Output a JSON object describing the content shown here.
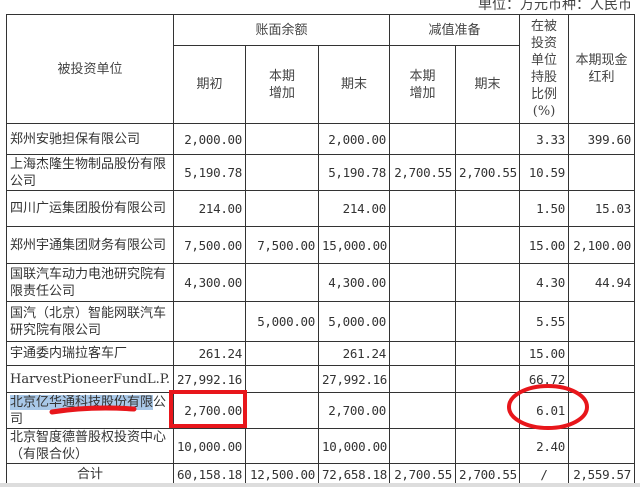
{
  "unit_note": "单位：万元币种：人民币",
  "headers": {
    "investee": "被投资单位",
    "book_balance": "账面余额",
    "impairment": "减值准备",
    "opening": "期初",
    "increase": "本期增加",
    "closing": "期末",
    "imp_increase": "本期增加",
    "imp_closing": "期末",
    "share_ratio": "在被投资单位持股比例(%)",
    "dividend": "本期现金红利"
  },
  "rows": [
    {
      "name": "郑州安驰担保有限公司",
      "opening": "2,000.00",
      "increase": "",
      "closing": "2,000.00",
      "imp_increase": "",
      "imp_closing": "",
      "ratio": "3.33",
      "dividend": "399.60"
    },
    {
      "name": "上海杰隆生物制品股份有限公司",
      "opening": "5,190.78",
      "increase": "",
      "closing": "5,190.78",
      "imp_increase": "2,700.55",
      "imp_closing": "2,700.55",
      "ratio": "10.59",
      "dividend": ""
    },
    {
      "name": "四川广运集团股份有限公司",
      "opening": "214.00",
      "increase": "",
      "closing": "214.00",
      "imp_increase": "",
      "imp_closing": "",
      "ratio": "1.50",
      "dividend": "15.03"
    },
    {
      "name": "郑州宇通集团财务有限公司",
      "opening": "7,500.00",
      "increase": "7,500.00",
      "closing": "15,000.00",
      "imp_increase": "",
      "imp_closing": "",
      "ratio": "15.00",
      "dividend": "2,100.00"
    },
    {
      "name": "国联汽车动力电池研究院有限责任公司",
      "opening": "4,300.00",
      "increase": "",
      "closing": "4,300.00",
      "imp_increase": "",
      "imp_closing": "",
      "ratio": "4.30",
      "dividend": "44.94"
    },
    {
      "name": "国汽（北京）智能网联汽车研究院有限公司",
      "opening": "",
      "increase": "5,000.00",
      "closing": "5,000.00",
      "imp_increase": "",
      "imp_closing": "",
      "ratio": "5.55",
      "dividend": ""
    },
    {
      "name": "宇通委内瑞拉客车厂",
      "opening": "261.24",
      "increase": "",
      "closing": "261.24",
      "imp_increase": "",
      "imp_closing": "",
      "ratio": "15.00",
      "dividend": ""
    },
    {
      "name": "HarvestPioneerFundL.P.",
      "opening": "27,992.16",
      "increase": "",
      "closing": "27,992.16",
      "imp_increase": "",
      "imp_closing": "",
      "ratio": "66.72",
      "dividend": ""
    },
    {
      "name_highlight": "北京亿华通科技股份有限",
      "name_rest": "公司",
      "opening": "2,700.00",
      "increase": "",
      "closing": "2,700.00",
      "imp_increase": "",
      "imp_closing": "",
      "ratio": "6.01",
      "dividend": ""
    },
    {
      "name": "北京智度德普股权投资中心（有限合伙）",
      "opening": "10,000.00",
      "increase": "",
      "closing": "10,000.00",
      "imp_increase": "",
      "imp_closing": "",
      "ratio": "2.40",
      "dividend": ""
    }
  ],
  "total": {
    "label": "合计",
    "opening": "60,158.18",
    "increase": "12,500.00",
    "closing": "72,658.18",
    "imp_increase": "2,700.55",
    "imp_closing": "2,700.55",
    "ratio": "/",
    "dividend": "2,559.57"
  },
  "annotation_color": "#e8161b",
  "highlight_color": "#a9c8e8"
}
